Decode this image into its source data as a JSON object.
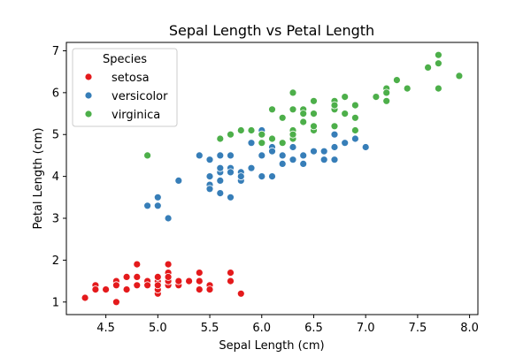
{
  "chart_data": {
    "type": "scatter",
    "title": "Sepal Length vs Petal Length",
    "xlabel": "Sepal Length (cm)",
    "ylabel": "Petal Length (cm)",
    "xlim": [
      4.12,
      8.08
    ],
    "ylim": [
      0.7,
      7.2
    ],
    "xticks": [
      4.5,
      5.0,
      5.5,
      6.0,
      6.5,
      7.0,
      7.5,
      8.0
    ],
    "xtick_labels": [
      "4.5",
      "5.0",
      "5.5",
      "6.0",
      "6.5",
      "7.0",
      "7.5",
      "8.0"
    ],
    "yticks": [
      1,
      2,
      3,
      4,
      5,
      6,
      7
    ],
    "ytick_labels": [
      "1",
      "2",
      "3",
      "4",
      "5",
      "6",
      "7"
    ],
    "grid": false,
    "legend": {
      "title": "Species",
      "position": "top-left"
    },
    "series": [
      {
        "name": "setosa",
        "color": "#e41a1c",
        "points": [
          [
            5.1,
            1.4
          ],
          [
            4.9,
            1.4
          ],
          [
            4.7,
            1.3
          ],
          [
            4.6,
            1.5
          ],
          [
            5.0,
            1.4
          ],
          [
            5.4,
            1.7
          ],
          [
            4.6,
            1.4
          ],
          [
            5.0,
            1.5
          ],
          [
            4.4,
            1.4
          ],
          [
            4.9,
            1.5
          ],
          [
            5.4,
            1.5
          ],
          [
            4.8,
            1.6
          ],
          [
            4.8,
            1.4
          ],
          [
            4.3,
            1.1
          ],
          [
            5.8,
            1.2
          ],
          [
            5.7,
            1.5
          ],
          [
            5.4,
            1.3
          ],
          [
            5.1,
            1.4
          ],
          [
            5.7,
            1.7
          ],
          [
            5.1,
            1.5
          ],
          [
            5.4,
            1.7
          ],
          [
            5.1,
            1.5
          ],
          [
            4.6,
            1.0
          ],
          [
            5.1,
            1.7
          ],
          [
            4.8,
            1.9
          ],
          [
            5.0,
            1.6
          ],
          [
            5.0,
            1.6
          ],
          [
            5.2,
            1.5
          ],
          [
            5.2,
            1.4
          ],
          [
            4.7,
            1.6
          ],
          [
            4.8,
            1.6
          ],
          [
            5.4,
            1.5
          ],
          [
            5.2,
            1.5
          ],
          [
            5.5,
            1.4
          ],
          [
            4.9,
            1.5
          ],
          [
            5.0,
            1.2
          ],
          [
            5.5,
            1.3
          ],
          [
            4.9,
            1.4
          ],
          [
            4.4,
            1.3
          ],
          [
            5.1,
            1.5
          ],
          [
            5.0,
            1.3
          ],
          [
            4.5,
            1.3
          ],
          [
            4.4,
            1.3
          ],
          [
            5.0,
            1.6
          ],
          [
            5.1,
            1.9
          ],
          [
            4.8,
            1.4
          ],
          [
            5.1,
            1.6
          ],
          [
            4.6,
            1.4
          ],
          [
            5.3,
            1.5
          ],
          [
            5.0,
            1.4
          ]
        ]
      },
      {
        "name": "versicolor",
        "color": "#377eb8",
        "points": [
          [
            7.0,
            4.7
          ],
          [
            6.4,
            4.5
          ],
          [
            6.9,
            4.9
          ],
          [
            5.5,
            4.0
          ],
          [
            6.5,
            4.6
          ],
          [
            5.7,
            4.5
          ],
          [
            6.3,
            4.7
          ],
          [
            4.9,
            3.3
          ],
          [
            6.6,
            4.6
          ],
          [
            5.2,
            3.9
          ],
          [
            5.0,
            3.5
          ],
          [
            5.9,
            4.2
          ],
          [
            6.0,
            4.0
          ],
          [
            6.1,
            4.7
          ],
          [
            5.6,
            3.6
          ],
          [
            6.7,
            4.4
          ],
          [
            5.6,
            4.5
          ],
          [
            5.8,
            4.1
          ],
          [
            6.2,
            4.5
          ],
          [
            5.6,
            3.9
          ],
          [
            5.9,
            4.8
          ],
          [
            6.1,
            4.0
          ],
          [
            6.3,
            4.9
          ],
          [
            6.1,
            4.7
          ],
          [
            6.4,
            4.3
          ],
          [
            6.6,
            4.4
          ],
          [
            6.8,
            4.8
          ],
          [
            6.7,
            5.0
          ],
          [
            6.0,
            4.5
          ],
          [
            5.7,
            3.5
          ],
          [
            5.5,
            3.8
          ],
          [
            5.5,
            3.7
          ],
          [
            5.8,
            3.9
          ],
          [
            6.0,
            5.1
          ],
          [
            5.4,
            4.5
          ],
          [
            6.0,
            4.5
          ],
          [
            6.7,
            4.7
          ],
          [
            6.3,
            4.4
          ],
          [
            5.6,
            4.1
          ],
          [
            5.5,
            4.0
          ],
          [
            5.5,
            4.4
          ],
          [
            6.1,
            4.6
          ],
          [
            5.8,
            4.0
          ],
          [
            5.0,
            3.3
          ],
          [
            5.6,
            4.2
          ],
          [
            5.7,
            4.2
          ],
          [
            5.7,
            4.2
          ],
          [
            6.2,
            4.3
          ],
          [
            5.1,
            3.0
          ],
          [
            5.7,
            4.1
          ]
        ]
      },
      {
        "name": "virginica",
        "color": "#4daf4a",
        "points": [
          [
            6.3,
            6.0
          ],
          [
            5.8,
            5.1
          ],
          [
            7.1,
            5.9
          ],
          [
            6.3,
            5.6
          ],
          [
            6.5,
            5.8
          ],
          [
            7.6,
            6.6
          ],
          [
            4.9,
            4.5
          ],
          [
            7.3,
            6.3
          ],
          [
            6.7,
            5.8
          ],
          [
            7.2,
            6.1
          ],
          [
            6.5,
            5.1
          ],
          [
            6.4,
            5.3
          ],
          [
            6.8,
            5.5
          ],
          [
            5.7,
            5.0
          ],
          [
            5.8,
            5.1
          ],
          [
            6.4,
            5.3
          ],
          [
            6.5,
            5.5
          ],
          [
            7.7,
            6.7
          ],
          [
            7.7,
            6.9
          ],
          [
            6.0,
            5.0
          ],
          [
            6.9,
            5.7
          ],
          [
            5.6,
            4.9
          ],
          [
            7.7,
            6.7
          ],
          [
            6.3,
            4.9
          ],
          [
            6.7,
            5.7
          ],
          [
            7.2,
            6.0
          ],
          [
            6.2,
            4.8
          ],
          [
            6.1,
            4.9
          ],
          [
            6.4,
            5.6
          ],
          [
            7.2,
            5.8
          ],
          [
            7.4,
            6.1
          ],
          [
            7.9,
            6.4
          ],
          [
            6.4,
            5.6
          ],
          [
            6.3,
            5.1
          ],
          [
            6.1,
            5.6
          ],
          [
            7.7,
            6.1
          ],
          [
            6.3,
            5.6
          ],
          [
            6.4,
            5.5
          ],
          [
            6.0,
            4.8
          ],
          [
            6.9,
            5.4
          ],
          [
            6.7,
            5.6
          ],
          [
            6.9,
            5.1
          ],
          [
            5.8,
            5.1
          ],
          [
            6.8,
            5.9
          ],
          [
            6.7,
            5.7
          ],
          [
            6.7,
            5.2
          ],
          [
            6.3,
            5.0
          ],
          [
            6.5,
            5.2
          ],
          [
            6.2,
            5.4
          ],
          [
            5.9,
            5.1
          ]
        ]
      }
    ]
  }
}
